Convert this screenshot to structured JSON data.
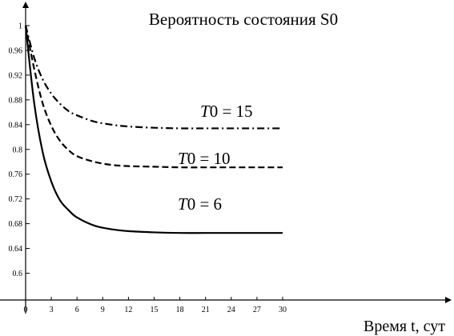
{
  "chart_data": {
    "type": "line",
    "title": "Вероятность состояния S0",
    "xlabel": "Время t, сут",
    "ylabel": "",
    "xlim": [
      0,
      32
    ],
    "ylim": [
      0.565,
      1.045
    ],
    "x_ticks": [
      0,
      3,
      6,
      9,
      12,
      15,
      18,
      21,
      24,
      27,
      30
    ],
    "y_ticks": [
      0.6,
      0.64,
      0.68,
      0.72,
      0.76,
      0.8,
      0.84,
      0.88,
      0.92,
      0.96,
      1
    ],
    "x_tick_labels": [
      "0",
      "3",
      "6",
      "9",
      "12",
      "15",
      "18",
      "21",
      "24",
      "27",
      "30"
    ],
    "y_tick_labels": [
      "0.6",
      "0.64",
      "0.68",
      "0.72",
      "0.76",
      "0.8",
      "0.84",
      "0.88",
      "0.92",
      "0.96",
      "1"
    ],
    "grid": false,
    "series": [
      {
        "name": "T0 = 15",
        "style": "dashdot",
        "x": [
          0,
          1,
          2,
          3,
          4,
          5,
          6,
          8,
          10,
          12,
          15,
          18,
          21,
          24,
          27,
          30
        ],
        "y": [
          1.0,
          0.948,
          0.913,
          0.89,
          0.874,
          0.862,
          0.855,
          0.845,
          0.84,
          0.837,
          0.835,
          0.834,
          0.834,
          0.834,
          0.834,
          0.834
        ]
      },
      {
        "name": "T0 = 10",
        "style": "dashed",
        "x": [
          0,
          1,
          2,
          3,
          4,
          5,
          6,
          8,
          10,
          12,
          15,
          18,
          21,
          24,
          27,
          30
        ],
        "y": [
          1.0,
          0.93,
          0.874,
          0.838,
          0.814,
          0.799,
          0.789,
          0.78,
          0.775,
          0.773,
          0.772,
          0.771,
          0.771,
          0.771,
          0.771,
          0.771
        ]
      },
      {
        "name": "T0 = 6",
        "style": "solid",
        "x": [
          0,
          1,
          2,
          3,
          4,
          5,
          6,
          8,
          10,
          12,
          15,
          18,
          21,
          24,
          27,
          30
        ],
        "y": [
          1.0,
          0.875,
          0.795,
          0.748,
          0.718,
          0.702,
          0.69,
          0.677,
          0.671,
          0.668,
          0.666,
          0.665,
          0.665,
          0.665,
          0.665,
          0.665
        ]
      }
    ],
    "annotations": [
      {
        "prefix": "T",
        "sub": "0",
        "rest": " = 15",
        "series": "T0 = 15"
      },
      {
        "prefix": "T",
        "sub": "0",
        "rest": " = 10",
        "series": "T0 = 10"
      },
      {
        "prefix": "T",
        "sub": "0",
        "rest": " = 6",
        "series": "T0 = 6"
      }
    ]
  }
}
